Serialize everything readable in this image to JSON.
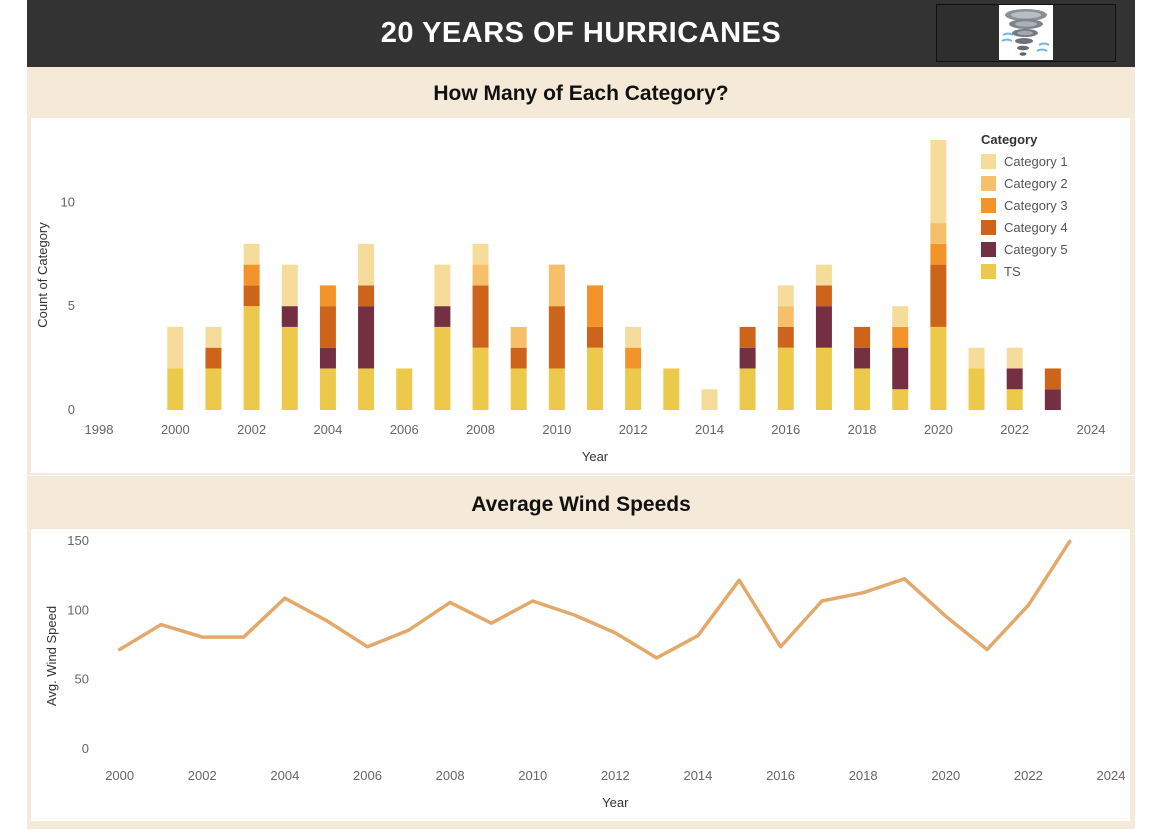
{
  "header": {
    "title": "20 YEARS OF HURRICANES",
    "logo_icon": "tornado-icon"
  },
  "colors": {
    "Category 1": "#f5dc9a",
    "Category 2": "#f6c06a",
    "Category 3": "#f3942a",
    "Category 4": "#cd6419",
    "Category 5": "#752f42",
    "TS": "#ecc94a",
    "line": "#e3a96b"
  },
  "chart_data": [
    {
      "type": "bar",
      "stacked": true,
      "title": "How Many of Each Category?",
      "xlabel": "Year",
      "ylabel": "Count of Category",
      "xlim": [
        1998,
        2024
      ],
      "ylim": [
        0,
        13
      ],
      "x_ticks": [
        1998,
        2000,
        2002,
        2004,
        2006,
        2008,
        2010,
        2012,
        2014,
        2016,
        2018,
        2020,
        2022,
        2024
      ],
      "y_ticks": [
        0,
        5,
        10
      ],
      "legend_title": "Category",
      "legend_position": "top-right",
      "categories": [
        2000,
        2001,
        2002,
        2003,
        2004,
        2005,
        2006,
        2007,
        2008,
        2009,
        2010,
        2011,
        2012,
        2013,
        2014,
        2015,
        2016,
        2017,
        2018,
        2019,
        2020,
        2021,
        2022,
        2023
      ],
      "series": [
        {
          "name": "TS",
          "values": [
            2,
            2,
            5,
            4,
            2,
            2,
            2,
            4,
            3,
            2,
            2,
            3,
            2,
            2,
            0,
            2,
            3,
            3,
            2,
            1,
            4,
            2,
            1,
            0
          ]
        },
        {
          "name": "Category 5",
          "values": [
            0,
            0,
            0,
            1,
            1,
            3,
            0,
            1,
            0,
            0,
            0,
            0,
            0,
            0,
            0,
            1,
            0,
            2,
            1,
            2,
            0,
            0,
            1,
            1
          ]
        },
        {
          "name": "Category 4",
          "values": [
            0,
            1,
            1,
            0,
            2,
            1,
            0,
            0,
            3,
            1,
            3,
            1,
            0,
            0,
            0,
            1,
            1,
            1,
            1,
            0,
            3,
            0,
            0,
            1
          ]
        },
        {
          "name": "Category 3",
          "values": [
            0,
            0,
            1,
            0,
            1,
            0,
            0,
            0,
            0,
            0,
            0,
            2,
            1,
            0,
            0,
            0,
            0,
            0,
            0,
            1,
            1,
            0,
            0,
            0
          ]
        },
        {
          "name": "Category 2",
          "values": [
            0,
            0,
            0,
            0,
            0,
            0,
            0,
            0,
            1,
            1,
            2,
            0,
            0,
            0,
            0,
            0,
            1,
            0,
            0,
            0,
            1,
            0,
            0,
            0
          ]
        },
        {
          "name": "Category 1",
          "values": [
            2,
            1,
            1,
            2,
            0,
            2,
            0,
            2,
            1,
            0,
            0,
            0,
            1,
            0,
            1,
            0,
            1,
            1,
            0,
            1,
            4,
            1,
            1,
            0
          ]
        }
      ],
      "legend_order": [
        "Category 1",
        "Category 2",
        "Category 3",
        "Category 4",
        "Category 5",
        "TS"
      ]
    },
    {
      "type": "line",
      "title": "Average Wind Speeds",
      "xlabel": "Year",
      "ylabel": "Avg. Wind Speed",
      "xlim": [
        1999.5,
        2024
      ],
      "ylim": [
        0,
        150
      ],
      "x_ticks": [
        2000,
        2002,
        2004,
        2006,
        2008,
        2010,
        2012,
        2014,
        2016,
        2018,
        2020,
        2022,
        2024
      ],
      "y_ticks": [
        0,
        50,
        100,
        150
      ],
      "x": [
        2000,
        2001,
        2002,
        2003,
        2004,
        2005,
        2006,
        2007,
        2008,
        2009,
        2010,
        2011,
        2012,
        2013,
        2014,
        2015,
        2016,
        2017,
        2018,
        2019,
        2020,
        2021,
        2022,
        2023
      ],
      "series": [
        {
          "values": [
            71,
            89,
            80,
            80,
            108,
            92,
            73,
            85,
            105,
            90,
            106,
            96,
            83,
            65,
            81,
            121,
            73,
            106,
            112,
            122,
            95,
            71,
            103,
            149
          ]
        }
      ]
    }
  ]
}
